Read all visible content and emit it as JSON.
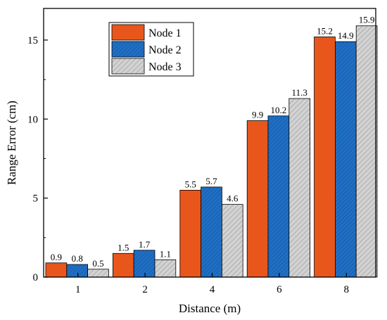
{
  "chart_data": {
    "type": "bar",
    "categories": [
      "1",
      "2",
      "4",
      "6",
      "8"
    ],
    "series": [
      {
        "name": "Node 1",
        "color": "#E8561B",
        "pattern": "solid",
        "values": [
          0.9,
          1.5,
          5.5,
          9.9,
          15.2
        ]
      },
      {
        "name": "Node 2",
        "color": "#1F6FC5",
        "pattern": "dense-hatch",
        "values": [
          0.8,
          1.7,
          5.7,
          10.2,
          14.9
        ]
      },
      {
        "name": "Node 3",
        "color": "#C8C8C8",
        "pattern": "diagonal-hatch",
        "values": [
          0.5,
          1.1,
          4.6,
          11.3,
          15.9
        ]
      }
    ],
    "data_labels": [
      [
        "0.9",
        "1.5",
        "5.5",
        "9.9",
        "15.2"
      ],
      [
        "0.8",
        "1.7",
        "5.7",
        "10.2",
        "14.9"
      ],
      [
        "0.5",
        "1.1",
        "4.6",
        "11.3",
        "15.9"
      ]
    ],
    "xlabel": "Distance (m)",
    "ylabel": "Range Error (cm)",
    "ylim": [
      0,
      17
    ],
    "yticks": [
      0,
      5,
      10,
      15
    ],
    "ytick_labels": [
      "0",
      "5",
      "10",
      "15"
    ],
    "grid": false,
    "legend_position": "top-left"
  }
}
